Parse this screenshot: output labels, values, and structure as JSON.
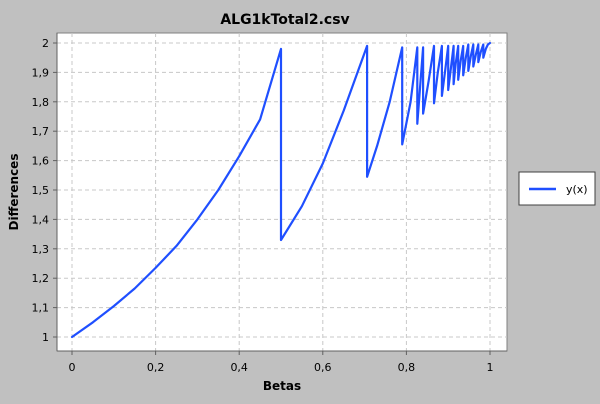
{
  "chart_data": {
    "type": "line",
    "title": "ALG1kTotal2.csv",
    "xlabel": "Betas",
    "ylabel": "Differences",
    "xlim": [
      0,
      1
    ],
    "ylim": [
      1,
      2
    ],
    "x_ticks": [
      "0",
      "0,2",
      "0,4",
      "0,6",
      "0,8",
      "1"
    ],
    "y_ticks": [
      "1",
      "1,1",
      "1,2",
      "1,3",
      "1,4",
      "1,5",
      "1,6",
      "1,7",
      "1,8",
      "1,9",
      "2"
    ],
    "grid": true,
    "legend_position": "right",
    "series": [
      {
        "name": "y(x)",
        "color": "#1f4fff",
        "x": [
          0,
          0.05,
          0.1,
          0.15,
          0.2,
          0.25,
          0.3,
          0.35,
          0.4,
          0.45,
          0.5,
          0.5,
          0.55,
          0.6,
          0.65,
          0.706,
          0.706,
          0.73,
          0.76,
          0.79,
          0.79,
          0.81,
          0.826,
          0.826,
          0.84,
          0.84,
          0.853,
          0.866,
          0.866,
          0.875,
          0.885,
          0.885,
          0.893,
          0.9,
          0.9,
          0.907,
          0.913,
          0.913,
          0.918,
          0.924,
          0.924,
          0.93,
          0.936,
          0.936,
          0.942,
          0.948,
          0.948,
          0.954,
          0.96,
          0.96,
          0.966,
          0.972,
          0.972,
          0.978,
          0.984,
          0.984,
          0.99,
          0.995,
          1.0
        ],
        "y": [
          1.0,
          1.05,
          1.105,
          1.165,
          1.235,
          1.31,
          1.4,
          1.5,
          1.615,
          1.74,
          1.98,
          1.33,
          1.445,
          1.59,
          1.77,
          1.99,
          1.545,
          1.65,
          1.8,
          1.985,
          1.655,
          1.8,
          1.985,
          1.725,
          1.985,
          1.76,
          1.87,
          1.99,
          1.795,
          1.9,
          1.99,
          1.82,
          1.91,
          1.99,
          1.84,
          1.92,
          1.99,
          1.86,
          1.93,
          1.99,
          1.875,
          1.94,
          1.99,
          1.89,
          1.95,
          1.995,
          1.905,
          1.955,
          1.995,
          1.92,
          1.96,
          1.995,
          1.935,
          1.97,
          1.995,
          1.95,
          1.98,
          1.995,
          2.0
        ]
      }
    ]
  }
}
